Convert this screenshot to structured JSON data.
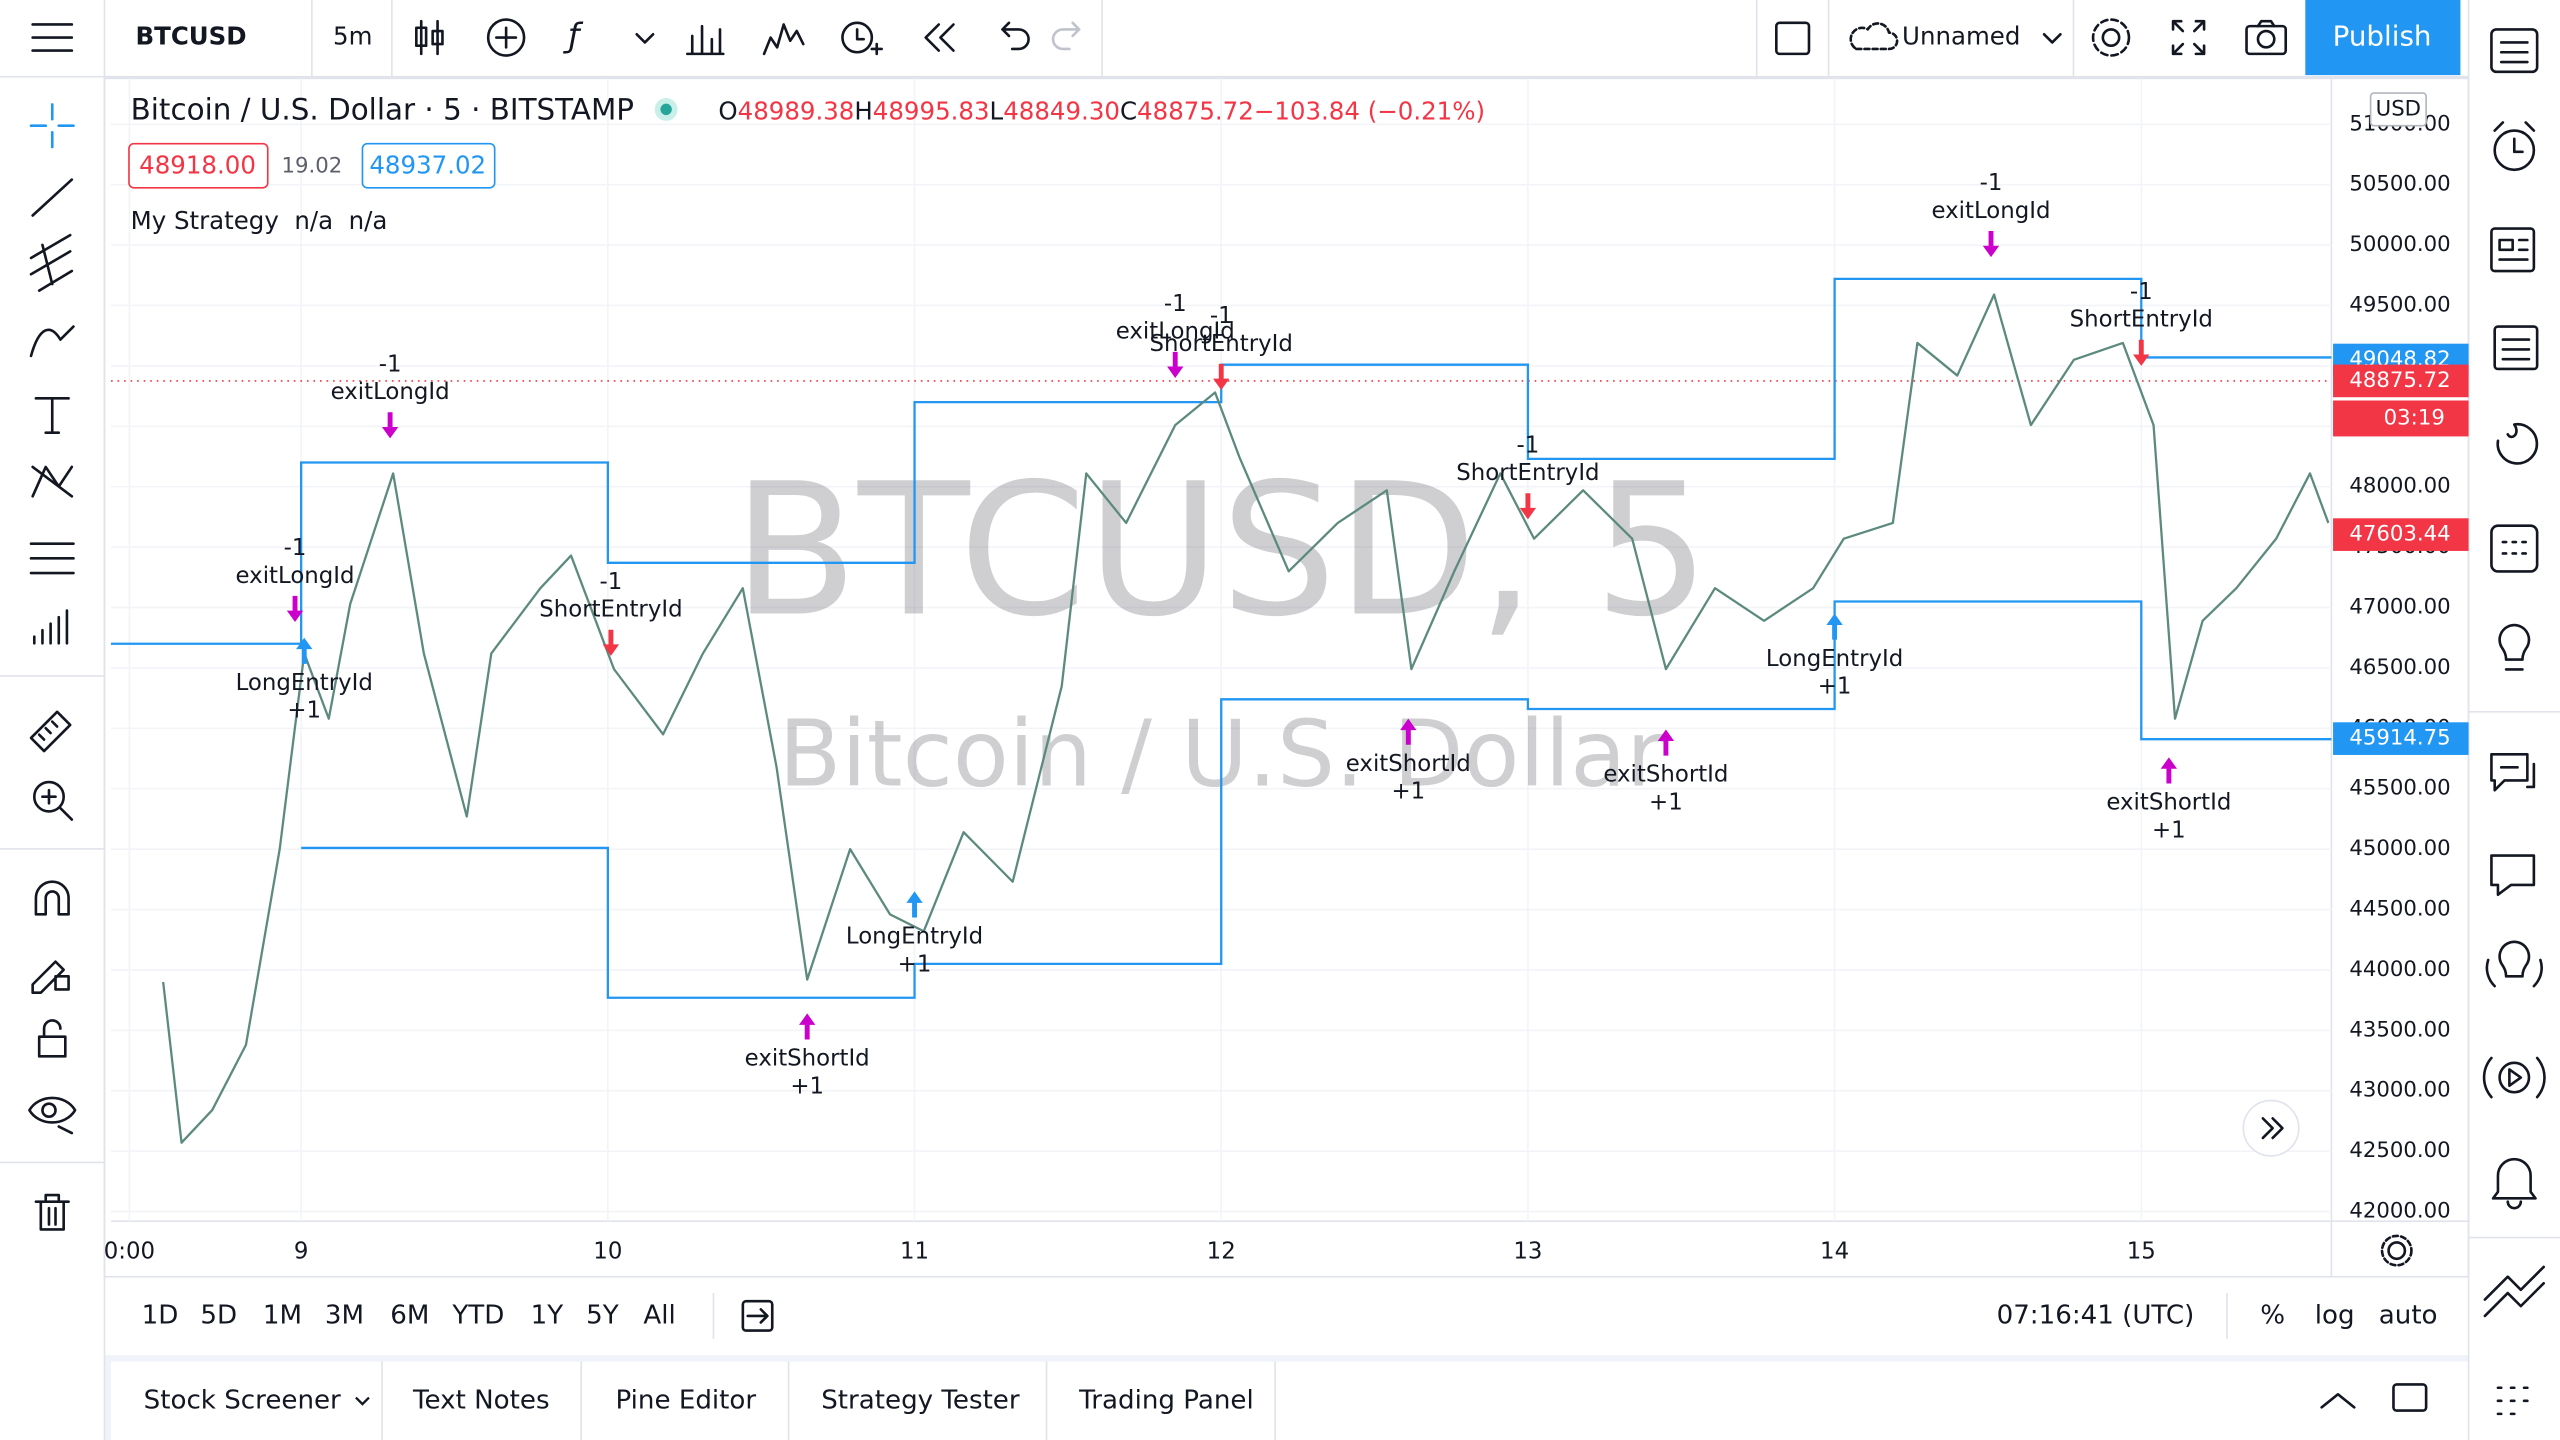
{
  "toolbar": {
    "symbol": "BTCUSD",
    "interval": "5m",
    "layout_name": "Unnamed",
    "publish": "Publish"
  },
  "legend": {
    "title": "Bitcoin / U.S. Dollar · 5 · BITSTAMP",
    "ohlc": [
      {
        "key": "O",
        "value": "48989.38"
      },
      {
        "key": "H",
        "value": "48995.83"
      },
      {
        "key": "L",
        "value": "48849.30"
      },
      {
        "key": "C",
        "value": "48875.72"
      },
      {
        "key": "",
        "value": "−103.84 (−0.21%)"
      }
    ],
    "bid": "48918.00",
    "spread": "19.02",
    "ask": "48937.02",
    "strategy": "My Strategy  n/a  n/a"
  },
  "watermark": {
    "symbol": "BTCUSD, 5",
    "description": "Bitcoin / U.S. Dollar"
  },
  "chart_data": {
    "type": "line",
    "currency": "USD",
    "color": "#5d8a7e",
    "x": [
      8.55,
      8.61,
      8.71,
      8.82,
      8.93,
      9.01,
      9.09,
      9.16,
      9.3,
      9.4,
      9.54,
      9.62,
      9.78,
      9.88,
      10.02,
      10.18,
      10.31,
      10.44,
      10.55,
      10.65,
      10.79,
      10.92,
      11.03,
      11.16,
      11.32,
      11.48,
      11.56,
      11.69,
      11.85,
      11.98,
      12.06,
      12.22,
      12.38,
      12.54,
      12.62,
      12.76,
      12.91,
      13.02,
      13.18,
      13.34,
      13.45,
      13.61,
      13.77,
      13.93,
      14.03,
      14.19,
      14.27,
      14.4,
      14.52,
      14.64,
      14.78,
      14.94,
      15.04,
      15.11,
      15.2,
      15.31,
      15.44,
      15.55,
      15.61
    ],
    "values": [
      43900,
      42570,
      42840,
      43380,
      45000,
      46620,
      46080,
      47030,
      48110,
      46620,
      45270,
      46620,
      47160,
      47430,
      46490,
      45950,
      46620,
      47160,
      45680,
      43920,
      45000,
      44460,
      44320,
      45140,
      44730,
      46350,
      48110,
      47700,
      48510,
      48780,
      48240,
      47300,
      47700,
      47970,
      46490,
      47300,
      48110,
      47570,
      47970,
      47570,
      46490,
      47160,
      46890,
      47160,
      47570,
      47700,
      49190,
      48920,
      49590,
      48510,
      49050,
      49190,
      48510,
      46080,
      46890,
      47160,
      47570,
      48110,
      47700
    ],
    "xlim": [
      8.38,
      15.62
    ],
    "ylim": [
      41920,
      51380
    ],
    "xticks": [
      {
        "value": 8.44,
        "label": "0:00"
      },
      9,
      10,
      11,
      12,
      13,
      14,
      15
    ],
    "yticks": [
      {
        "value": 42000,
        "label": "42000.00"
      },
      {
        "value": 42500,
        "label": "42500.00"
      },
      {
        "value": 43000,
        "label": "43000.00"
      },
      {
        "value": 43500,
        "label": "43500.00"
      },
      {
        "value": 44000,
        "label": "44000.00"
      },
      {
        "value": 44500,
        "label": "44500.00"
      },
      {
        "value": 45000,
        "label": "45000.00"
      },
      {
        "value": 45500,
        "label": "45500.00"
      },
      {
        "value": 46000,
        "label": "46000.00"
      },
      {
        "value": 46500,
        "label": "46500.00"
      },
      {
        "value": 47000,
        "label": "47000.00"
      },
      {
        "value": 47500,
        "label": "47500.00"
      },
      {
        "value": 48000,
        "label": "48000.00"
      },
      {
        "value": 48500,
        "label": "48500.00"
      },
      {
        "value": 49000,
        "label": "49000.00"
      },
      {
        "value": 49500,
        "label": "49500.00"
      },
      {
        "value": 50000,
        "label": "50000.00"
      },
      {
        "value": 50500,
        "label": "50500.00"
      },
      {
        "value": 51000,
        "label": "51000.00"
      }
    ],
    "grid": true,
    "steps": [
      {
        "color": "#2196f3",
        "x": [
          8.38,
          9,
          10,
          11,
          12,
          13,
          14,
          15
        ],
        "values": [
          46700,
          48200,
          47370,
          48700,
          49010,
          48230,
          49720,
          49070
        ]
      },
      {
        "color": "#2196f3",
        "x": [
          9,
          10,
          11,
          12,
          13,
          14,
          15
        ],
        "values": [
          45010,
          43770,
          44050,
          46240,
          46160,
          47050,
          45910
        ]
      }
    ],
    "signals": [
      {
        "label": "exitLongId",
        "qty": "-1",
        "color": "#cc00cc",
        "x": 8.98,
        "price": 46880
      },
      {
        "label": "LongEntryId",
        "qty": "+1",
        "color": "#2196f3",
        "x": 9.01,
        "price": 46750
      },
      {
        "label": "exitLongId",
        "qty": "-1",
        "color": "#cc00cc",
        "x": 9.29,
        "price": 48400
      },
      {
        "label": "ShortEntryId",
        "qty": "-1",
        "color": "#f23645",
        "x": 10.01,
        "price": 46600
      },
      {
        "label": "exitShortId",
        "qty": "+1",
        "color": "#cc00cc",
        "x": 10.65,
        "price": 43640
      },
      {
        "label": "LongEntryId",
        "qty": "+1",
        "color": "#2196f3",
        "x": 11.0,
        "price": 44650
      },
      {
        "label": "exitLongId",
        "qty": "-1",
        "color": "#cc00cc",
        "x": 11.85,
        "price": 48900
      },
      {
        "label": "ShortEntryId",
        "qty": "-1",
        "color": "#f23645",
        "x": 12.0,
        "price": 48800
      },
      {
        "label": "exitShortId",
        "qty": "+1",
        "color": "#cc00cc",
        "x": 12.61,
        "price": 46080
      },
      {
        "label": "ShortEntryId",
        "qty": "-1",
        "color": "#f23645",
        "x": 13.0,
        "price": 47730
      },
      {
        "label": "exitShortId",
        "qty": "+1",
        "color": "#cc00cc",
        "x": 13.45,
        "price": 45990
      },
      {
        "label": "LongEntryId",
        "qty": "+1",
        "color": "#2196f3",
        "x": 14.0,
        "price": 46950
      },
      {
        "label": "exitLongId",
        "qty": "-1",
        "color": "#cc00cc",
        "x": 14.51,
        "price": 49900
      },
      {
        "label": "ShortEntryId",
        "qty": "-1",
        "color": "#f23645",
        "x": 15.0,
        "price": 49000
      },
      {
        "label": "exitShortId",
        "qty": "+1",
        "color": "#cc00cc",
        "x": 15.09,
        "price": 45760
      }
    ],
    "last_price_line": 48875.72,
    "price_labels": [
      {
        "value": 49048.82,
        "color": "#2196f3"
      },
      {
        "value": 48875.72,
        "color": "#f23645"
      },
      {
        "value": 47603.44,
        "color": "#f23645"
      },
      {
        "value": 45914.75,
        "color": "#2196f3"
      }
    ],
    "countdown": "03:19"
  },
  "bottom_toolbar": {
    "ranges": [
      "1D",
      "5D",
      "1M",
      "3M",
      "6M",
      "YTD",
      "1Y",
      "5Y",
      "All"
    ],
    "clock": "07:16:41 (UTC)",
    "percent": "%",
    "log": "log",
    "auto": "auto"
  },
  "tabs": [
    "Stock Screener",
    "Text Notes",
    "Pine Editor",
    "Strategy Tester",
    "Trading Panel"
  ]
}
